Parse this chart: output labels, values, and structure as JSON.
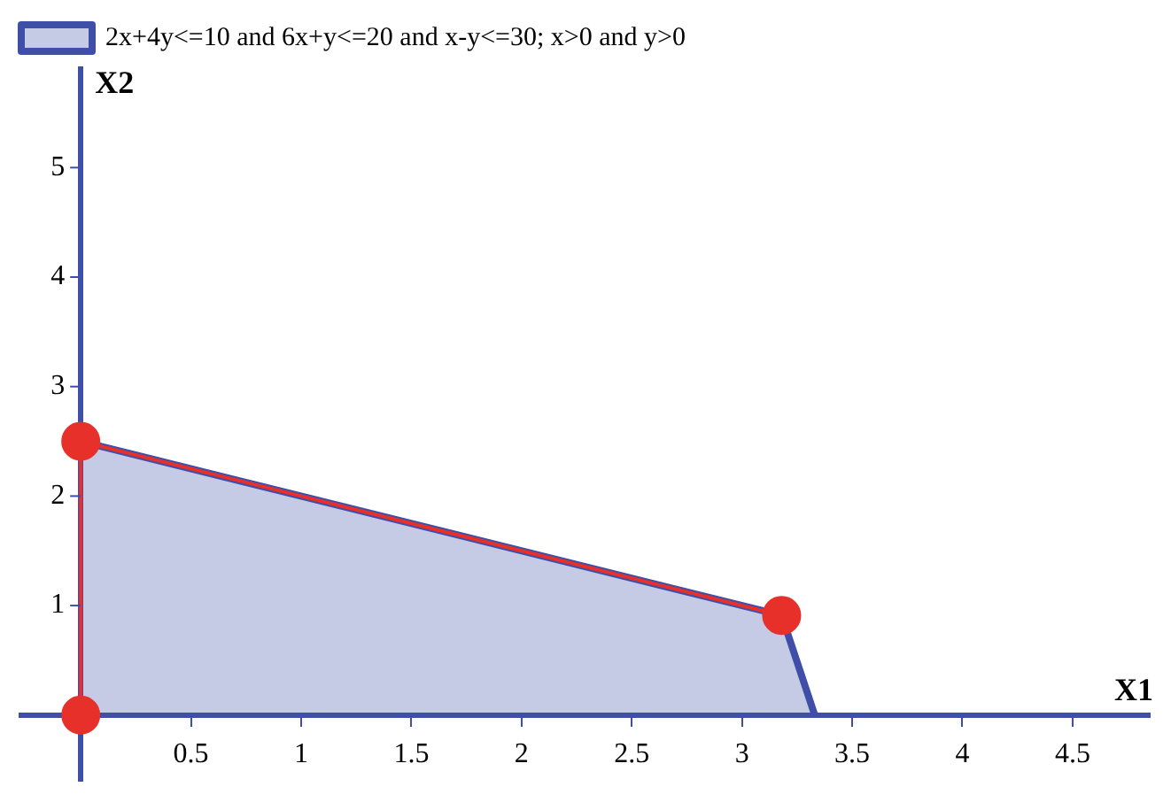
{
  "chart_data": {
    "type": "area",
    "xlabel": "X1",
    "ylabel": "X2",
    "xlim": [
      -0.27,
      4.85
    ],
    "ylim": [
      -0.6,
      5.9
    ],
    "xticks": [
      0.5,
      1,
      1.5,
      2,
      2.5,
      3,
      3.5,
      4,
      4.5
    ],
    "yticks": [
      1,
      2,
      3,
      4,
      5
    ],
    "grid": false,
    "legend": "top left",
    "series": [
      {
        "name": "2x+4y<=10 and 6x+y<=20 and x-y<=30; x>0 and y>0",
        "color": "#3f4fa8",
        "x": [
          0,
          3.18,
          3.33
        ],
        "values": [
          2.5,
          0.91,
          0
        ]
      },
      {
        "type": "line",
        "color": "#e8302a",
        "marker": "circle",
        "x": [
          0,
          0,
          3.18
        ],
        "values": [
          0,
          2.5,
          0.91
        ]
      }
    ]
  }
}
